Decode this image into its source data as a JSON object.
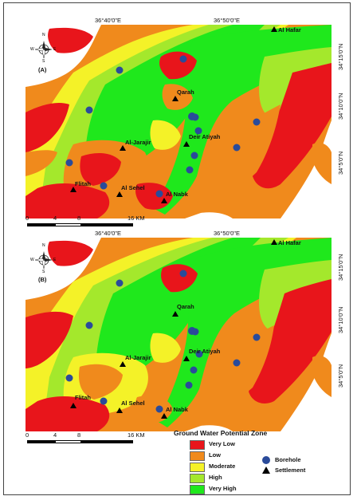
{
  "grid_labels": {
    "longitude": [
      "36°40'0\"E",
      "36°50'0\"E"
    ],
    "latitude": [
      "34°15'0\"N",
      "34°10'0\"N",
      "34°5'0\"N"
    ]
  },
  "panels": [
    {
      "id": "(A)"
    },
    {
      "id": "(B)"
    }
  ],
  "settlements": [
    "Al Hafar",
    "Qarah",
    "Deir Atiyah",
    "Al-Jarajir",
    "Flitah",
    "Al Sehel",
    "Al Nabk"
  ],
  "scale_bar": {
    "labels": [
      "0",
      "4",
      "8",
      "16 KM"
    ]
  },
  "legend": {
    "title": "Ground Water Potential Zone",
    "classes": [
      {
        "label": "Very Low",
        "color": "#e8151b"
      },
      {
        "label": "Low",
        "color": "#f08a1c"
      },
      {
        "label": "Moderate",
        "color": "#f4f228"
      },
      {
        "label": "High",
        "color": "#a4e82c"
      },
      {
        "label": "Very High",
        "color": "#1fe81c"
      }
    ],
    "symbols": [
      {
        "label": "Borehole",
        "color": "#2a4b9a",
        "shape": "circle"
      },
      {
        "label": "Settlement",
        "color": "#000000",
        "shape": "triangle"
      }
    ]
  },
  "north_arrow": {
    "letters": [
      "N",
      "E",
      "S",
      "W"
    ]
  }
}
